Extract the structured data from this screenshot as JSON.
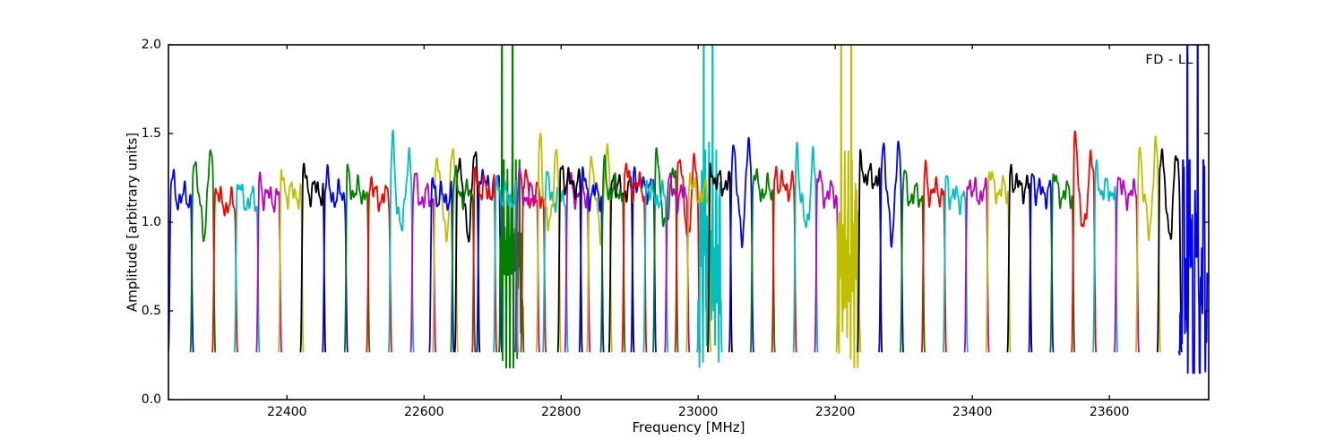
{
  "chart_data": {
    "type": "line",
    "title": "",
    "xlabel": "Frequency [MHz]",
    "ylabel": "Amplitude [arbitrary units]",
    "annotation": "FD - LL",
    "xlim": [
      22227,
      23745
    ],
    "ylim": [
      0.0,
      2.0
    ],
    "xticks": [
      22400,
      22600,
      22800,
      23000,
      23200,
      23400,
      23600
    ],
    "yticks": [
      "0.0",
      "0.5",
      "1.0",
      "1.5",
      "2.0"
    ],
    "ytick_values": [
      0.0,
      0.5,
      1.0,
      1.5,
      2.0
    ],
    "grid": false,
    "legend": "none",
    "tick_direction": "in",
    "clip_level": 2.0,
    "baseline_amplitude": 0.27,
    "palette": {
      "b": "#0000ff",
      "g": "#008000",
      "r": "#ff0000",
      "c": "#00bfbf",
      "m": "#bf00bf",
      "y": "#bfbf00",
      "k": "#000000"
    },
    "color_cycle": [
      "b",
      "g",
      "r",
      "c",
      "m",
      "y",
      "k"
    ],
    "window_columns": [
      "id",
      "color",
      "f_start_mhz",
      "f_end_mhz",
      "peak_amp",
      "style",
      "spike_positions"
    ],
    "spectral_windows": [
      [
        "A1",
        "b",
        22229.0,
        22261.2,
        1.24,
        "normal"
      ],
      [
        "A2",
        "g",
        22261.2,
        22293.3,
        1.4,
        "tall"
      ],
      [
        "A3",
        "r",
        22293.3,
        22325.5,
        1.2,
        "normal"
      ],
      [
        "A4",
        "c",
        22325.5,
        22357.6,
        1.22,
        "normal"
      ],
      [
        "A5",
        "m",
        22357.6,
        22389.8,
        1.24,
        "normal"
      ],
      [
        "A6",
        "y",
        22389.8,
        22421.9,
        1.26,
        "normal"
      ],
      [
        "A7",
        "k",
        22421.9,
        22454.1,
        1.28,
        "normal"
      ],
      [
        "A8",
        "b",
        22454.1,
        22486.2,
        1.25,
        "normal"
      ],
      [
        "A9",
        "g",
        22486.2,
        22518.4,
        1.27,
        "normal"
      ],
      [
        "A10",
        "r",
        22518.4,
        22550.5,
        1.24,
        "normal"
      ],
      [
        "A11",
        "c",
        22550.5,
        22582.7,
        1.45,
        "tall"
      ],
      [
        "A12",
        "m",
        22582.7,
        22614.8,
        1.24,
        "normal"
      ],
      [
        "A13",
        "y",
        22614.8,
        22647.0,
        1.42,
        "tall"
      ],
      [
        "A14",
        "k",
        22647.0,
        22679.1,
        1.4,
        "tall"
      ],
      [
        "A15",
        "b",
        22679.1,
        22711.3,
        1.3,
        "normal"
      ],
      [
        "A16",
        "g",
        22711.3,
        22743.4,
        1.35,
        "spiky",
        [
          0.12,
          0.55
        ]
      ],
      [
        "A17",
        "r",
        22743.4,
        22775.6,
        1.25,
        "normal"
      ],
      [
        "A18",
        "c",
        22775.6,
        22807.7,
        1.24,
        "normal"
      ],
      [
        "A19",
        "m",
        22807.7,
        22839.9,
        1.26,
        "normal"
      ],
      [
        "A20",
        "y",
        22839.9,
        22872.0,
        1.42,
        "tall"
      ],
      [
        "A21",
        "k",
        22872.0,
        22904.2,
        1.28,
        "normal"
      ],
      [
        "A22",
        "b",
        22904.2,
        22936.3,
        1.3,
        "normal"
      ],
      [
        "A23",
        "g",
        22936.3,
        22968.5,
        1.38,
        "tall"
      ],
      [
        "A24",
        "r",
        22968.5,
        23000.6,
        1.38,
        "tall"
      ],
      [
        "A25",
        "c",
        23000.6,
        23032.8,
        1.45,
        "spiky",
        [
          0.26,
          0.62
        ]
      ],
      [
        "B1",
        "b",
        22610.0,
        22641.2,
        1.24,
        "normal"
      ],
      [
        "B2",
        "g",
        22641.2,
        22672.5,
        1.26,
        "normal"
      ],
      [
        "B3",
        "r",
        22672.5,
        22703.7,
        1.28,
        "normal"
      ],
      [
        "B4",
        "c",
        22703.7,
        22735.0,
        1.24,
        "normal"
      ],
      [
        "B5",
        "m",
        22735.0,
        22766.2,
        1.25,
        "normal"
      ],
      [
        "B6",
        "y",
        22766.2,
        22797.4,
        1.45,
        "tall"
      ],
      [
        "B7",
        "k",
        22797.4,
        22828.7,
        1.32,
        "normal"
      ],
      [
        "B8",
        "b",
        22828.7,
        22859.9,
        1.26,
        "normal"
      ],
      [
        "B9",
        "g",
        22859.9,
        22891.2,
        1.28,
        "normal"
      ],
      [
        "B10",
        "r",
        22891.2,
        22922.4,
        1.3,
        "normal"
      ],
      [
        "B11",
        "c",
        22922.4,
        22953.6,
        1.24,
        "normal"
      ],
      [
        "B12",
        "m",
        22953.6,
        22984.9,
        1.25,
        "normal"
      ],
      [
        "B13",
        "y",
        22984.9,
        23016.1,
        1.26,
        "normal"
      ],
      [
        "B14",
        "k",
        23016.1,
        23047.4,
        1.32,
        "normal"
      ],
      [
        "B15",
        "b",
        23047.4,
        23078.6,
        1.47,
        "tall"
      ],
      [
        "B16",
        "g",
        23078.6,
        23109.8,
        1.28,
        "normal"
      ],
      [
        "B17",
        "r",
        23109.8,
        23141.1,
        1.3,
        "normal"
      ],
      [
        "B18",
        "c",
        23141.1,
        23172.3,
        1.4,
        "tall"
      ],
      [
        "B19",
        "m",
        23172.3,
        23203.6,
        1.26,
        "normal"
      ],
      [
        "B20",
        "y",
        23203.6,
        23234.8,
        1.4,
        "spiky",
        [
          0.2,
          0.62
        ]
      ],
      [
        "B21",
        "k",
        23234.8,
        23266.0,
        1.35,
        "normal"
      ],
      [
        "B22",
        "b",
        23266.0,
        23297.3,
        1.45,
        "tall"
      ],
      [
        "B23",
        "g",
        23297.3,
        23328.5,
        1.25,
        "normal"
      ],
      [
        "B24",
        "r",
        23328.5,
        23359.8,
        1.27,
        "normal"
      ],
      [
        "B25",
        "c",
        23359.8,
        23391.0,
        1.24,
        "normal"
      ],
      [
        "B26",
        "m",
        23391.0,
        23422.2,
        1.26,
        "normal"
      ],
      [
        "B27",
        "y",
        23422.2,
        23453.5,
        1.28,
        "normal"
      ],
      [
        "B28",
        "k",
        23453.5,
        23484.7,
        1.3,
        "normal"
      ],
      [
        "B29",
        "b",
        23484.7,
        23516.0,
        1.27,
        "normal"
      ],
      [
        "B30",
        "g",
        23516.0,
        23547.2,
        1.26,
        "normal"
      ],
      [
        "B31",
        "r",
        23547.2,
        23578.4,
        1.47,
        "tall"
      ],
      [
        "B32",
        "c",
        23578.4,
        23609.7,
        1.28,
        "normal"
      ],
      [
        "B33",
        "m",
        23609.7,
        23640.9,
        1.26,
        "normal"
      ],
      [
        "B34",
        "y",
        23640.9,
        23672.2,
        1.45,
        "tall"
      ],
      [
        "B35",
        "k",
        23672.2,
        23703.4,
        1.42,
        "tall"
      ],
      [
        "B36",
        "b",
        23703.4,
        23734.6,
        1.35,
        "spiky",
        [
          0.3,
          0.66
        ]
      ]
    ]
  }
}
